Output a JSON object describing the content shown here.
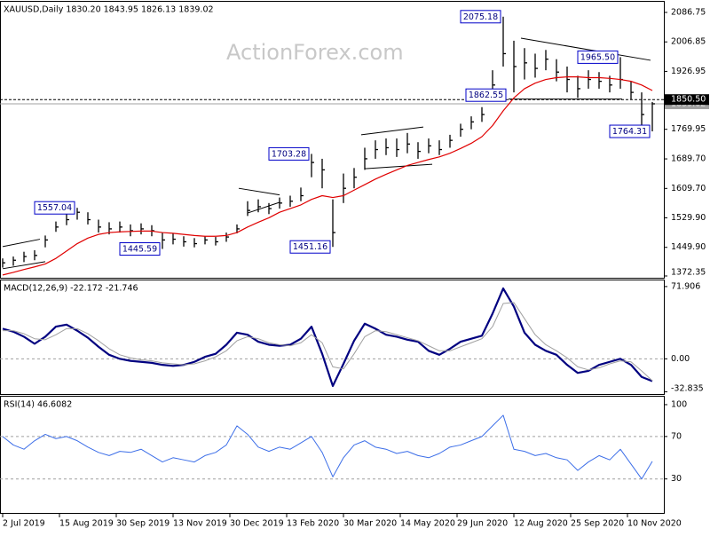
{
  "chart_data": [
    {
      "type": "ohlc",
      "title": "XAUUSD,Daily 1830.20 1843.95 1826.13 1839.02",
      "watermark": "ActionForex.com",
      "x": [
        0,
        6,
        12,
        18,
        24,
        30,
        36,
        42,
        48,
        54,
        60,
        66,
        72,
        78,
        84,
        90,
        96,
        102,
        108,
        114,
        120,
        126,
        132,
        138,
        144,
        150,
        156,
        162,
        168,
        174,
        180,
        186,
        192,
        198,
        204,
        210,
        216,
        222,
        228,
        234,
        240,
        246,
        252,
        258,
        264,
        270,
        276,
        282,
        288,
        294,
        300,
        306,
        312,
        318,
        324,
        330,
        336,
        342,
        348,
        354,
        360,
        366
      ],
      "xlim": [
        -1.5,
        372.5
      ],
      "ylim": [
        1367.5,
        2115.6
      ],
      "yticks": [
        {
          "value": 2086.75,
          "label": "2086.75"
        },
        {
          "value": 2006.85,
          "label": "2006.85"
        },
        {
          "value": 1926.95,
          "label": "1926.95"
        },
        {
          "value": 1769.95,
          "label": "1769.95"
        },
        {
          "value": 1689.7,
          "label": "1689.70"
        },
        {
          "value": 1609.7,
          "label": "1609.70"
        },
        {
          "value": 1529.9,
          "label": "1529.90"
        },
        {
          "value": 1449.9,
          "label": "1449.90"
        },
        {
          "value": 1372.35,
          "label": "1372.35"
        }
      ],
      "color": "#000000",
      "high": [
        1420,
        1425,
        1438,
        1442,
        1482,
        1520,
        1545,
        1557.04,
        1545,
        1525,
        1518,
        1520,
        1512,
        1515,
        1510,
        1490,
        1488,
        1480,
        1475,
        1480,
        1478,
        1490,
        1512,
        1575,
        1580,
        1570,
        1585,
        1590,
        1612,
        1703.28,
        1690,
        1580,
        1650,
        1665,
        1720,
        1740,
        1745,
        1745,
        1760,
        1735,
        1745,
        1740,
        1755,
        1785,
        1805,
        1830,
        1930,
        2075.18,
        2010,
        1990,
        1975,
        1985,
        1960,
        1940,
        1915,
        1930,
        1925,
        1915,
        1965.5,
        1900,
        1870,
        1844
      ],
      "low": [
        1395,
        1400,
        1410,
        1415,
        1450,
        1492,
        1510,
        1525,
        1512,
        1490,
        1485,
        1490,
        1480,
        1485,
        1480,
        1445.59,
        1458,
        1452,
        1450,
        1458,
        1455,
        1465,
        1488,
        1535,
        1545,
        1540,
        1555,
        1560,
        1575,
        1640,
        1610,
        1451.16,
        1570,
        1610,
        1660,
        1690,
        1700,
        1695,
        1705,
        1690,
        1705,
        1700,
        1720,
        1750,
        1770,
        1790,
        1860,
        1940,
        1870,
        1905,
        1910,
        1930,
        1900,
        1870,
        1855,
        1880,
        1880,
        1870,
        1880,
        1850,
        1780,
        1764.31
      ],
      "close": [
        1408,
        1415,
        1425,
        1428,
        1470,
        1505,
        1525,
        1545,
        1525,
        1505,
        1500,
        1505,
        1495,
        1500,
        1495,
        1470,
        1472,
        1465,
        1460,
        1470,
        1465,
        1478,
        1500,
        1550,
        1560,
        1555,
        1570,
        1575,
        1590,
        1680,
        1660,
        1490,
        1610,
        1640,
        1690,
        1715,
        1720,
        1715,
        1730,
        1710,
        1725,
        1715,
        1740,
        1770,
        1790,
        1810,
        1890,
        1975,
        1940,
        1950,
        1935,
        1960,
        1925,
        1905,
        1880,
        1905,
        1900,
        1890,
        1905,
        1870,
        1810,
        1839.02
      ],
      "ma": {
        "color": "#e00000",
        "values": [
          1375,
          1382,
          1390,
          1397,
          1405,
          1420,
          1440,
          1460,
          1475,
          1485,
          1490,
          1492,
          1493,
          1494,
          1494,
          1490,
          1488,
          1485,
          1482,
          1480,
          1480,
          1482,
          1490,
          1505,
          1518,
          1530,
          1545,
          1555,
          1565,
          1580,
          1590,
          1585,
          1590,
          1605,
          1620,
          1635,
          1648,
          1660,
          1672,
          1680,
          1688,
          1695,
          1705,
          1718,
          1732,
          1750,
          1780,
          1820,
          1855,
          1880,
          1895,
          1905,
          1910,
          1912,
          1912,
          1910,
          1910,
          1908,
          1905,
          1900,
          1890,
          1875
        ]
      },
      "annotations": [
        {
          "value": 2075.18,
          "label": "2075.18",
          "x": 282
        },
        {
          "value": 1965.5,
          "label": "1965.50",
          "x": 348
        },
        {
          "value": 1862.55,
          "label": "1862.55",
          "x": 285
        },
        {
          "value": 1703.28,
          "label": "1703.28",
          "x": 174
        },
        {
          "value": 1557.04,
          "label": "1557.04",
          "x": 42
        },
        {
          "value": 1445.59,
          "label": "1445.59",
          "x": 90
        },
        {
          "value": 1451.16,
          "label": "1451.16",
          "x": 186
        },
        {
          "value": 1764.31,
          "label": "1764.31",
          "x": 366
        }
      ],
      "trendlines": [
        {
          "x": [
            0,
            21
          ],
          "values": [
            1452,
            1472
          ]
        },
        {
          "x": [
            0,
            24
          ],
          "values": [
            1392,
            1411
          ]
        },
        {
          "x": [
            133,
            156
          ],
          "values": [
            1610,
            1592
          ]
        },
        {
          "x": [
            138,
            156
          ],
          "values": [
            1543,
            1572
          ]
        },
        {
          "x": [
            202,
            237
          ],
          "values": [
            1755,
            1776
          ]
        },
        {
          "x": [
            204,
            242
          ],
          "values": [
            1663,
            1675
          ]
        },
        {
          "x": [
            292,
            365
          ],
          "values": [
            2017,
            1957
          ]
        },
        {
          "x": [
            285,
            349
          ],
          "values": [
            1852,
            1852
          ]
        }
      ],
      "price_lines": [
        {
          "value": 1839.02,
          "label": "1839.02",
          "style": "solid",
          "color": "#a0a0a0"
        },
        {
          "value": 1850.5,
          "label": "1850.50",
          "style": "dashed",
          "color": "#000000"
        }
      ]
    },
    {
      "type": "line",
      "title": "MACD(12,26,9) -22.172 -21.746",
      "x": [
        0,
        6,
        12,
        18,
        24,
        30,
        36,
        42,
        48,
        54,
        60,
        66,
        72,
        78,
        84,
        90,
        96,
        102,
        108,
        114,
        120,
        126,
        132,
        138,
        144,
        150,
        156,
        162,
        168,
        174,
        180,
        186,
        192,
        198,
        204,
        210,
        216,
        222,
        228,
        234,
        240,
        246,
        252,
        258,
        264,
        270,
        276,
        282,
        288,
        294,
        300,
        306,
        312,
        318,
        324,
        330,
        336,
        342,
        348,
        354,
        360,
        366
      ],
      "xlim": [
        -1.5,
        372.5
      ],
      "ylim": [
        -35,
        78
      ],
      "yticks": [
        71.906,
        {
          "value": 0,
          "label": "0.00"
        },
        -32.835
      ],
      "levels": [
        0
      ],
      "series": [
        {
          "color": "#000080",
          "width": 2.2,
          "values": [
            30,
            27,
            22,
            15,
            22,
            32,
            34,
            28,
            21,
            12,
            4,
            0,
            -2,
            -3,
            -4,
            -6,
            -7,
            -6,
            -3,
            2,
            5,
            14,
            26,
            24,
            17,
            14,
            13,
            14,
            20,
            32,
            5,
            -27,
            -5,
            18,
            35,
            30,
            24,
            22,
            19,
            17,
            8,
            4,
            10,
            17,
            20,
            23,
            45,
            70,
            52,
            26,
            14,
            8,
            4,
            -6,
            -14,
            -12,
            -6,
            -3,
            0,
            -6,
            -18,
            -22.172
          ]
        },
        {
          "color": "#a0a0a0",
          "width": 1,
          "values": [
            28,
            28,
            25,
            20,
            19,
            24,
            30,
            30,
            25,
            18,
            10,
            4,
            1,
            -1,
            -2,
            -4,
            -5,
            -6,
            -5,
            -2,
            2,
            8,
            18,
            22,
            20,
            16,
            14,
            13,
            16,
            24,
            16,
            -8,
            -10,
            5,
            22,
            28,
            27,
            24,
            21,
            18,
            13,
            8,
            8,
            12,
            16,
            20,
            32,
            55,
            56,
            40,
            24,
            14,
            8,
            1,
            -8,
            -11,
            -9,
            -5,
            -2,
            -3,
            -12,
            -21.746
          ]
        }
      ]
    },
    {
      "type": "line",
      "title": "RSI(14) 46.6082",
      "x": [
        0,
        6,
        12,
        18,
        24,
        30,
        36,
        42,
        48,
        54,
        60,
        66,
        72,
        78,
        84,
        90,
        96,
        102,
        108,
        114,
        120,
        126,
        132,
        138,
        144,
        150,
        156,
        162,
        168,
        174,
        180,
        186,
        192,
        198,
        204,
        210,
        216,
        222,
        228,
        234,
        240,
        246,
        252,
        258,
        264,
        270,
        276,
        282,
        288,
        294,
        300,
        306,
        312,
        318,
        324,
        330,
        336,
        342,
        348,
        354,
        360,
        366
      ],
      "xlim": [
        -1.5,
        372.5
      ],
      "ylim": [
        -2,
        107.5
      ],
      "yticks": [
        100,
        70,
        30
      ],
      "levels": [
        70,
        30
      ],
      "xticks": [
        {
          "value": 0,
          "label": "2 Jul 2019"
        },
        {
          "value": 32,
          "label": "15 Aug 2019"
        },
        {
          "value": 64,
          "label": "30 Sep 2019"
        },
        {
          "value": 96,
          "label": "13 Nov 2019"
        },
        {
          "value": 128,
          "label": "30 Dec 2019"
        },
        {
          "value": 160,
          "label": "13 Feb 2020"
        },
        {
          "value": 192,
          "label": "30 Mar 2020"
        },
        {
          "value": 224,
          "label": "14 May 2020"
        },
        {
          "value": 256,
          "label": "29 Jun 2020"
        },
        {
          "value": 288,
          "label": "12 Aug 2020"
        },
        {
          "value": 320,
          "label": "25 Sep 2020"
        },
        {
          "value": 352,
          "label": "10 Nov 2020"
        }
      ],
      "series": [
        {
          "color": "#3c6ee8",
          "width": 1,
          "values": [
            70,
            62,
            58,
            66,
            72,
            68,
            70,
            66,
            60,
            55,
            52,
            56,
            55,
            58,
            52,
            46,
            50,
            48,
            46,
            52,
            55,
            62,
            80,
            72,
            60,
            56,
            60,
            58,
            64,
            70,
            55,
            32,
            50,
            62,
            66,
            60,
            58,
            54,
            56,
            52,
            50,
            54,
            60,
            62,
            66,
            70,
            80,
            90,
            58,
            56,
            52,
            54,
            50,
            48,
            38,
            46,
            52,
            48,
            58,
            44,
            30,
            46.6082
          ]
        }
      ]
    }
  ]
}
